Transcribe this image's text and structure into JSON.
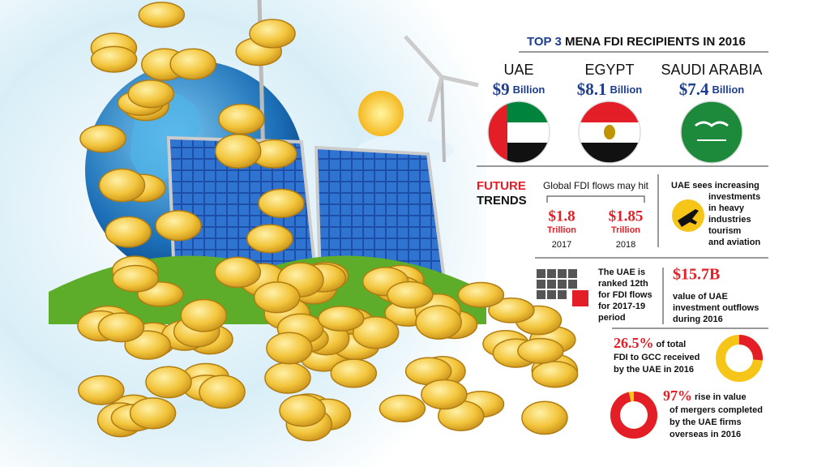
{
  "header": {
    "lead": "TOP 3",
    "title": "MENA FDI RECIPIENTS IN 2016"
  },
  "recipients": [
    {
      "country": "UAE",
      "amount": "$9",
      "unit": "Billion"
    },
    {
      "country": "EGYPT",
      "amount": "$8.1",
      "unit": "Billion"
    },
    {
      "country": "SAUDI ARABIA",
      "amount": "$7.4",
      "unit": "Billion"
    }
  ],
  "future_trends": {
    "line1": "FUTURE",
    "line2": "TRENDS"
  },
  "global_flows": {
    "caption": "Global FDI flows may hit",
    "items": [
      {
        "amount": "$1.8",
        "unit": "Trillion",
        "year": "2017"
      },
      {
        "amount": "$1.85",
        "unit": "Trillion",
        "year": "2018"
      }
    ]
  },
  "uae_investments": [
    "UAE sees increasing",
    "investments",
    "in heavy",
    "industries",
    "tourism",
    "and aviation"
  ],
  "ranking": [
    "The UAE is",
    "ranked 12th",
    "for FDI flows",
    "for 2017-19",
    "period"
  ],
  "outflows": {
    "amount": "$15.7B",
    "lines": [
      "value of UAE",
      "investment outflows",
      "during 2016"
    ]
  },
  "gcc_share": {
    "value": 26.5,
    "label": "26.5%",
    "lines": [
      "of total",
      "FDI to GCC received",
      "by the UAE in 2016"
    ]
  },
  "mergers": {
    "value": 97,
    "label": "97%",
    "lines": [
      "rise in value",
      "of mergers completed",
      "by the UAE firms",
      "overseas in 2016"
    ]
  }
}
